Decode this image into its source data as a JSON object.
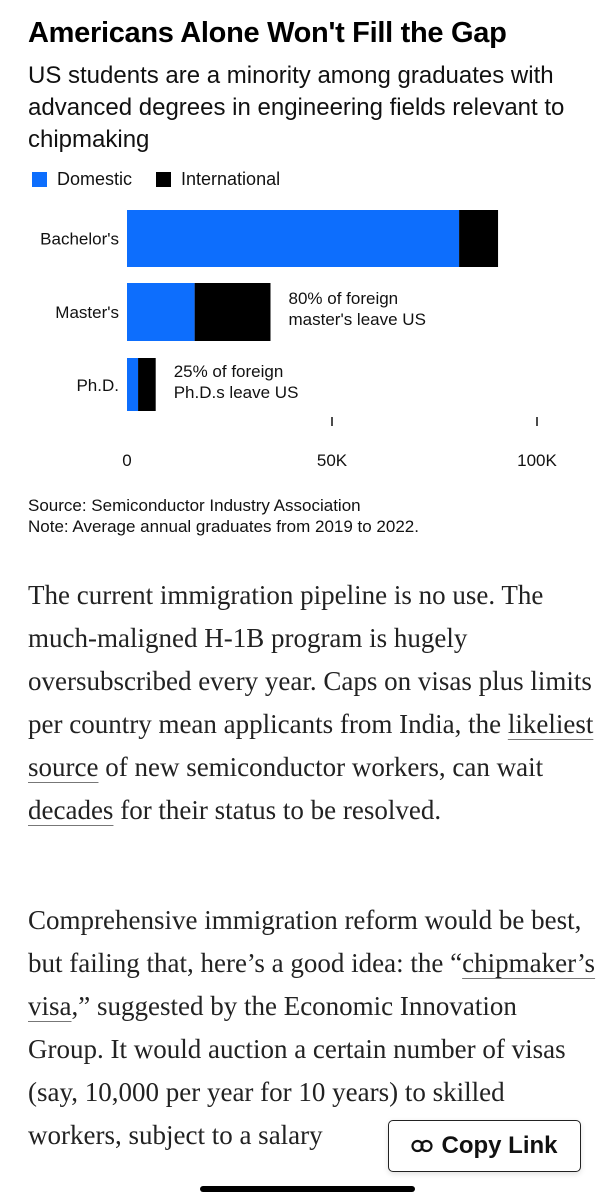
{
  "chart_title": "Americans Alone Won't Fill the Gap",
  "chart_subtitle": "US students are a minority among graduates with advanced degrees in engineering fields relevant to chipmaking",
  "colors": {
    "domestic": "#0d6efd",
    "international": "#000000"
  },
  "chart_data": {
    "type": "bar",
    "orientation": "horizontal",
    "stacked": true,
    "categories": [
      "Bachelor's",
      "Master's",
      "Ph.D."
    ],
    "series": [
      {
        "name": "Domestic",
        "values": [
          81000,
          16500,
          2700
        ]
      },
      {
        "name": "International",
        "values": [
          9500,
          18500,
          4300
        ]
      }
    ],
    "xlim": [
      0,
      100000
    ],
    "x_ticks": [
      {
        "value": 0,
        "label": "0"
      },
      {
        "value": 50000,
        "label": "50K"
      },
      {
        "value": 100000,
        "label": "100K"
      }
    ],
    "legend_position": "top-left",
    "annotations": [
      {
        "category": "Master's",
        "text": [
          "80% of foreign",
          "master's leave US"
        ]
      },
      {
        "category": "Ph.D.",
        "text": [
          "25% of foreign",
          "Ph.D.s leave US"
        ]
      }
    ],
    "grid": false
  },
  "source_line": "Source: Semiconductor Industry Association",
  "note_line": "Note: Average annual graduates from 2019 to 2022.",
  "paragraph1": {
    "t1": "The current immigration pipeline is no use. The much-maligned H-1B program is hugely oversubscribed every year. Caps on visas plus limits per country mean applicants from India, the ",
    "link1": "likeliest source",
    "t2": " of new semiconductor workers, can wait ",
    "link2": "decades",
    "t3": " for their status to be resolved."
  },
  "paragraph2": {
    "t1": "Comprehensive immigration reform would be best, but failing that, here’s a good idea: the “",
    "link1": "chipmaker’s visa",
    "t2": ",” suggested by the Economic Innovation Group. It would auction a certain number of visas (say, 10,000 per year for 10 years) to skilled workers, subject to a salary"
  },
  "copy_link": {
    "label": "Copy Link",
    "icon": "link-icon"
  }
}
